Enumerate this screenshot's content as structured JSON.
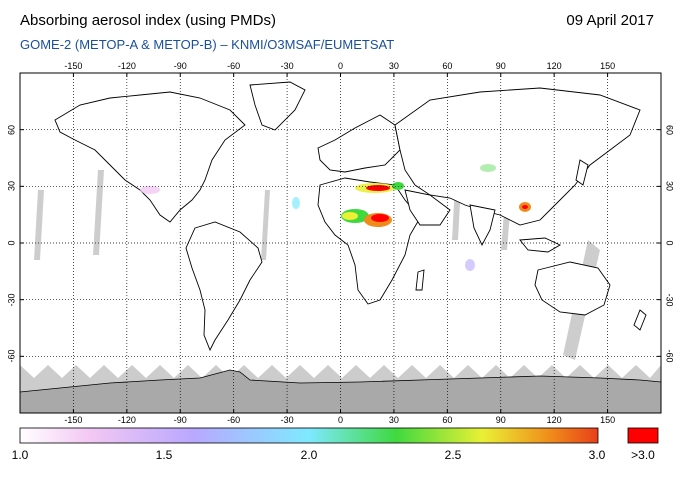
{
  "header": {
    "title": "Absorbing aerosol index (using PMDs)",
    "date": "09 April 2017",
    "subtitle": "GOME-2 (METOP-A & METOP-B)  –  KNMI/O3MSAF/EUMETSAT"
  },
  "map": {
    "lon_ticks": [
      "-150",
      "-120",
      "-90",
      "-60",
      "-30",
      "0",
      "30",
      "60",
      "90",
      "120",
      "150"
    ],
    "lat_ticks": [
      "60",
      "30",
      "0",
      "-30",
      "-60"
    ],
    "lon_range": [
      -180,
      180
    ],
    "lat_range": [
      -90,
      90
    ],
    "land_color": "#ffffff",
    "no_data_color": "#a9a9a9"
  },
  "colorbar": {
    "labels": [
      "1.0",
      "1.5",
      "2.0",
      "2.5",
      "3.0"
    ],
    "over_label": ">3.0",
    "over_color": "#ff0000",
    "gradient": [
      "#ffffff",
      "#f3c8f3",
      "#b9a8ff",
      "#7ee9ff",
      "#3fd93f",
      "#e9f035",
      "#f08a1a",
      "#e8401a"
    ]
  }
}
